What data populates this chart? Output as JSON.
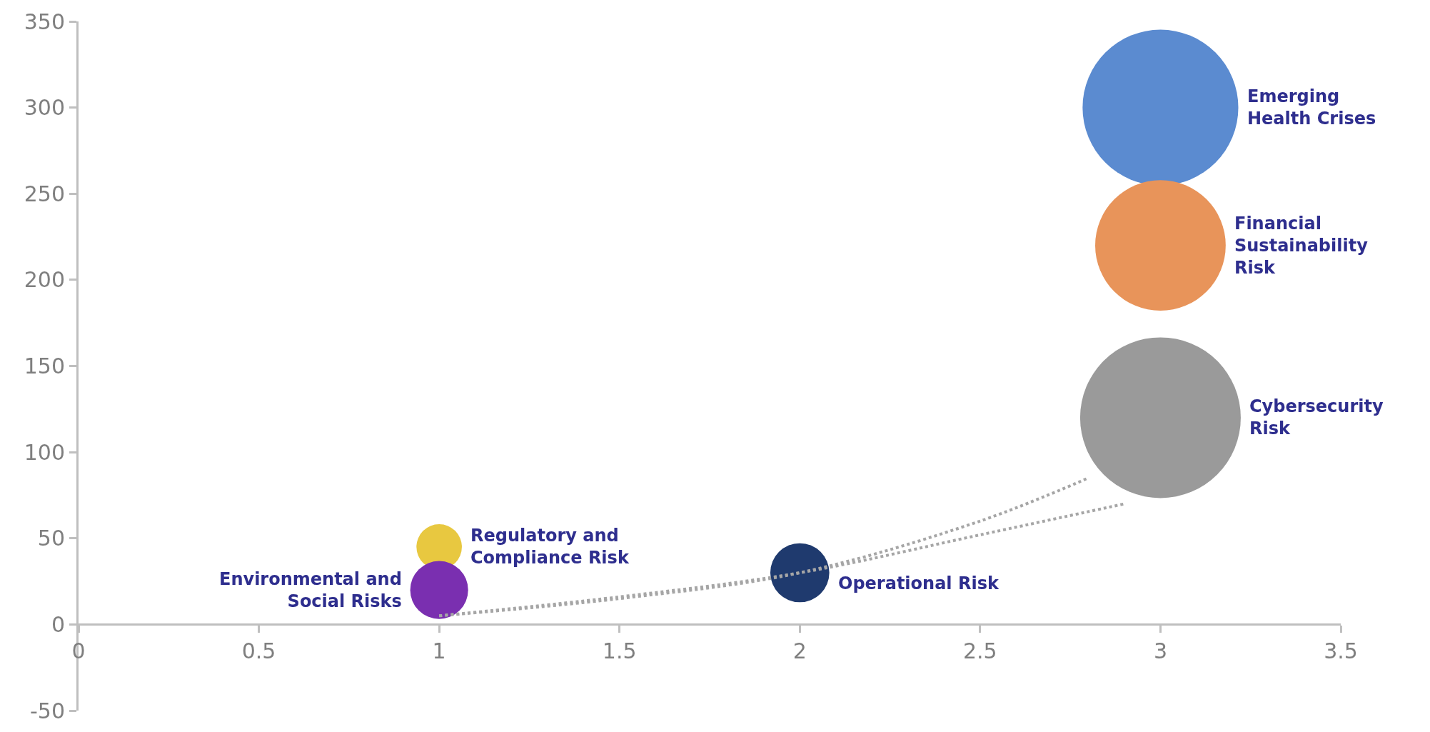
{
  "chart_data": {
    "type": "bubble",
    "x": [
      3,
      3,
      3,
      1,
      1,
      2
    ],
    "series": [
      {
        "values": [
          300,
          220,
          120,
          45,
          20,
          30
        ],
        "sizes": [
          0.94,
          0.66,
          1,
          0.08,
          0.13,
          0.135
        ],
        "colors": [
          "#5b8bd0",
          "#e8945a",
          "#9a9a9a",
          "#e8c840",
          "#7a2fb0",
          "#1f3a6e"
        ]
      },
      {
        "type": "line",
        "x": [
          1,
          1.5,
          2,
          2.5,
          2.8
        ],
        "values": [
          5,
          15,
          30,
          60,
          85
        ],
        "color": "#a6a6a6",
        "line_style": "dotted",
        "marker": "none"
      },
      {
        "type": "line",
        "x": [
          1,
          1.5,
          2,
          2.5,
          2.9
        ],
        "values": [
          5,
          16,
          30,
          52,
          70
        ],
        "color": "#a6a6a6",
        "line_style": "dotted",
        "marker": "none"
      }
    ],
    "annotations": [
      "Emerging\nHealth Crises",
      "Financial\nSustainability\nRisk",
      "Cybersecurity\nRisk",
      "Regulatory and\nCompliance Risk",
      "Environmental and\nSocial Risks",
      "Operational Risk"
    ],
    "xlim": [
      0,
      3.5
    ],
    "xticks": [
      0,
      0.5,
      1,
      1.5,
      2,
      2.5,
      3,
      3.5
    ],
    "ylim": [
      -50,
      350
    ],
    "yticks": [
      -50,
      0,
      50,
      100,
      150,
      200,
      250,
      300,
      350
    ]
  }
}
